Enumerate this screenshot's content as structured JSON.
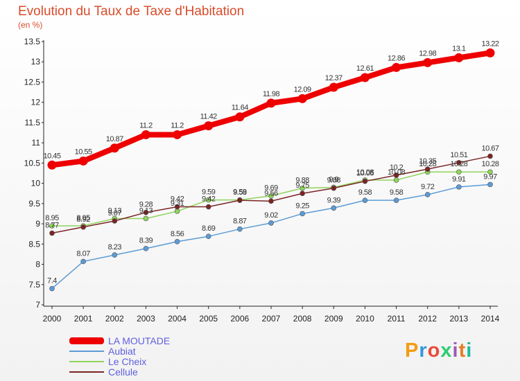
{
  "header": {
    "title": "Evolution du Taux de Taxe d'Habitation",
    "subtitle": "(en %)"
  },
  "logo": {
    "text": "Proxiti",
    "colors": [
      "#f39c12",
      "#3498db",
      "#e74c3c",
      "#2ecc71",
      "#9b59b6",
      "#e67e22",
      "#1abc9c"
    ]
  },
  "chart_data": {
    "type": "line",
    "x": [
      2000,
      2001,
      2002,
      2003,
      2004,
      2005,
      2006,
      2007,
      2008,
      2009,
      2010,
      2011,
      2012,
      2013,
      2014
    ],
    "ylim": [
      7,
      13.5
    ],
    "yticks": [
      "7",
      "7.5",
      "8",
      "8.5",
      "9",
      "9.5",
      "10",
      "10.5",
      "11",
      "11.5",
      "12",
      "12.5",
      "13",
      "13.5"
    ],
    "grid": false,
    "legend_position": "bottom-left",
    "series": [
      {
        "name": "LA MOUTADE",
        "color": "#ee0000",
        "emphasis": true,
        "values": [
          10.45,
          10.55,
          10.87,
          11.2,
          11.2,
          11.42,
          11.64,
          11.98,
          12.09,
          12.37,
          12.61,
          12.86,
          12.98,
          13.1,
          13.22
        ],
        "labels": [
          "10.45",
          "10.55",
          "10.87",
          "11.2",
          "11.2",
          "11.42",
          "11.64",
          "11.98",
          "12.09",
          "12.37",
          "12.61",
          "12.86",
          "12.98",
          "13.1",
          "13.22"
        ]
      },
      {
        "name": "Aubiat",
        "color": "#5b9bd5",
        "emphasis": false,
        "values": [
          7.4,
          8.07,
          8.23,
          8.39,
          8.56,
          8.69,
          8.87,
          9.02,
          9.25,
          9.39,
          9.58,
          9.58,
          9.72,
          9.91,
          9.97
        ],
        "labels": [
          "7.4",
          "8.07",
          "8.23",
          "8.39",
          "8.56",
          "8.69",
          "8.87",
          "9.02",
          "9.25",
          "9.39",
          "9.58",
          "9.58",
          "9.72",
          "9.91",
          "9.97"
        ]
      },
      {
        "name": "Le Cheix",
        "color": "#8fd35b",
        "emphasis": false,
        "values": [
          8.95,
          8.95,
          9.13,
          9.13,
          9.31,
          9.59,
          9.59,
          9.69,
          9.88,
          9.9,
          10.08,
          10.08,
          10.28,
          10.28,
          10.28
        ],
        "labels": [
          "8.95",
          "8.95",
          "9.13",
          "9.13",
          "9.31",
          "9.59",
          "9.59",
          "9.69",
          "9.88",
          "9.9",
          "10.08",
          "10.08",
          "10.28",
          "10.28",
          "10.28"
        ]
      },
      {
        "name": "Cellule",
        "color": "#7a2424",
        "emphasis": false,
        "values": [
          8.77,
          8.92,
          9.07,
          9.28,
          9.42,
          9.42,
          9.58,
          9.56,
          9.75,
          9.88,
          10.05,
          10.2,
          10.35,
          10.51,
          10.67
        ],
        "labels": [
          "8.77",
          "8.92",
          "9.07",
          "9.28",
          "9.42",
          "9.42",
          "9.58",
          "9.56",
          "9.75",
          "9.88",
          "10.05",
          "10.2",
          "10.35",
          "10.51",
          "10.67"
        ]
      }
    ]
  }
}
